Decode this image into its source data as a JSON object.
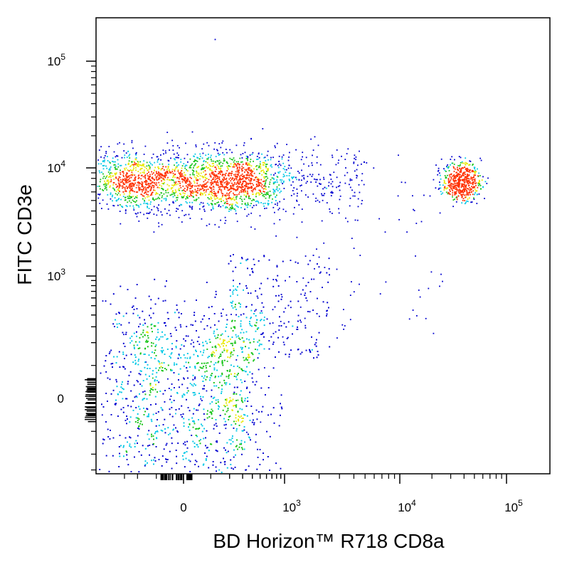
{
  "chart_data": {
    "type": "scatter",
    "title": "",
    "xlabel": "BD Horizon™ R718  CD8a",
    "ylabel": "FITC  CD3e",
    "x_scale": "biexponential",
    "y_scale": "biexponential",
    "x_ticks": [
      {
        "label": "0",
        "value": 0
      },
      {
        "label": "10",
        "exp": "3",
        "value": 1000
      },
      {
        "label": "10",
        "exp": "4",
        "value": 10000
      },
      {
        "label": "10",
        "exp": "5",
        "value": 100000
      }
    ],
    "y_ticks": [
      {
        "label": "0",
        "value": 0
      },
      {
        "label": "10",
        "exp": "3",
        "value": 1000
      },
      {
        "label": "10",
        "exp": "4",
        "value": 10000
      },
      {
        "label": "10",
        "exp": "5",
        "value": 100000
      }
    ],
    "xlim": [
      -400,
      200000
    ],
    "ylim": [
      -500,
      250000
    ],
    "grid": false,
    "legend": "none",
    "color_scale": [
      "#0000d0",
      "#00c8e6",
      "#18c418",
      "#e8e800",
      "#ff3000"
    ],
    "populations": [
      {
        "name": "",
        "x_center": 20,
        "y_center": 7500,
        "x_spread": 220,
        "y_spread": 0.14,
        "count": 2300
      },
      {
        "name": "",
        "x_center": 20,
        "y_center": 40,
        "x_spread": 200,
        "y_spread": 150,
        "count": 2800
      },
      {
        "name": "",
        "x_center": 38000,
        "y_center": 7500,
        "x_spread": 0.09,
        "y_spread": 0.09,
        "count": 500
      }
    ]
  }
}
